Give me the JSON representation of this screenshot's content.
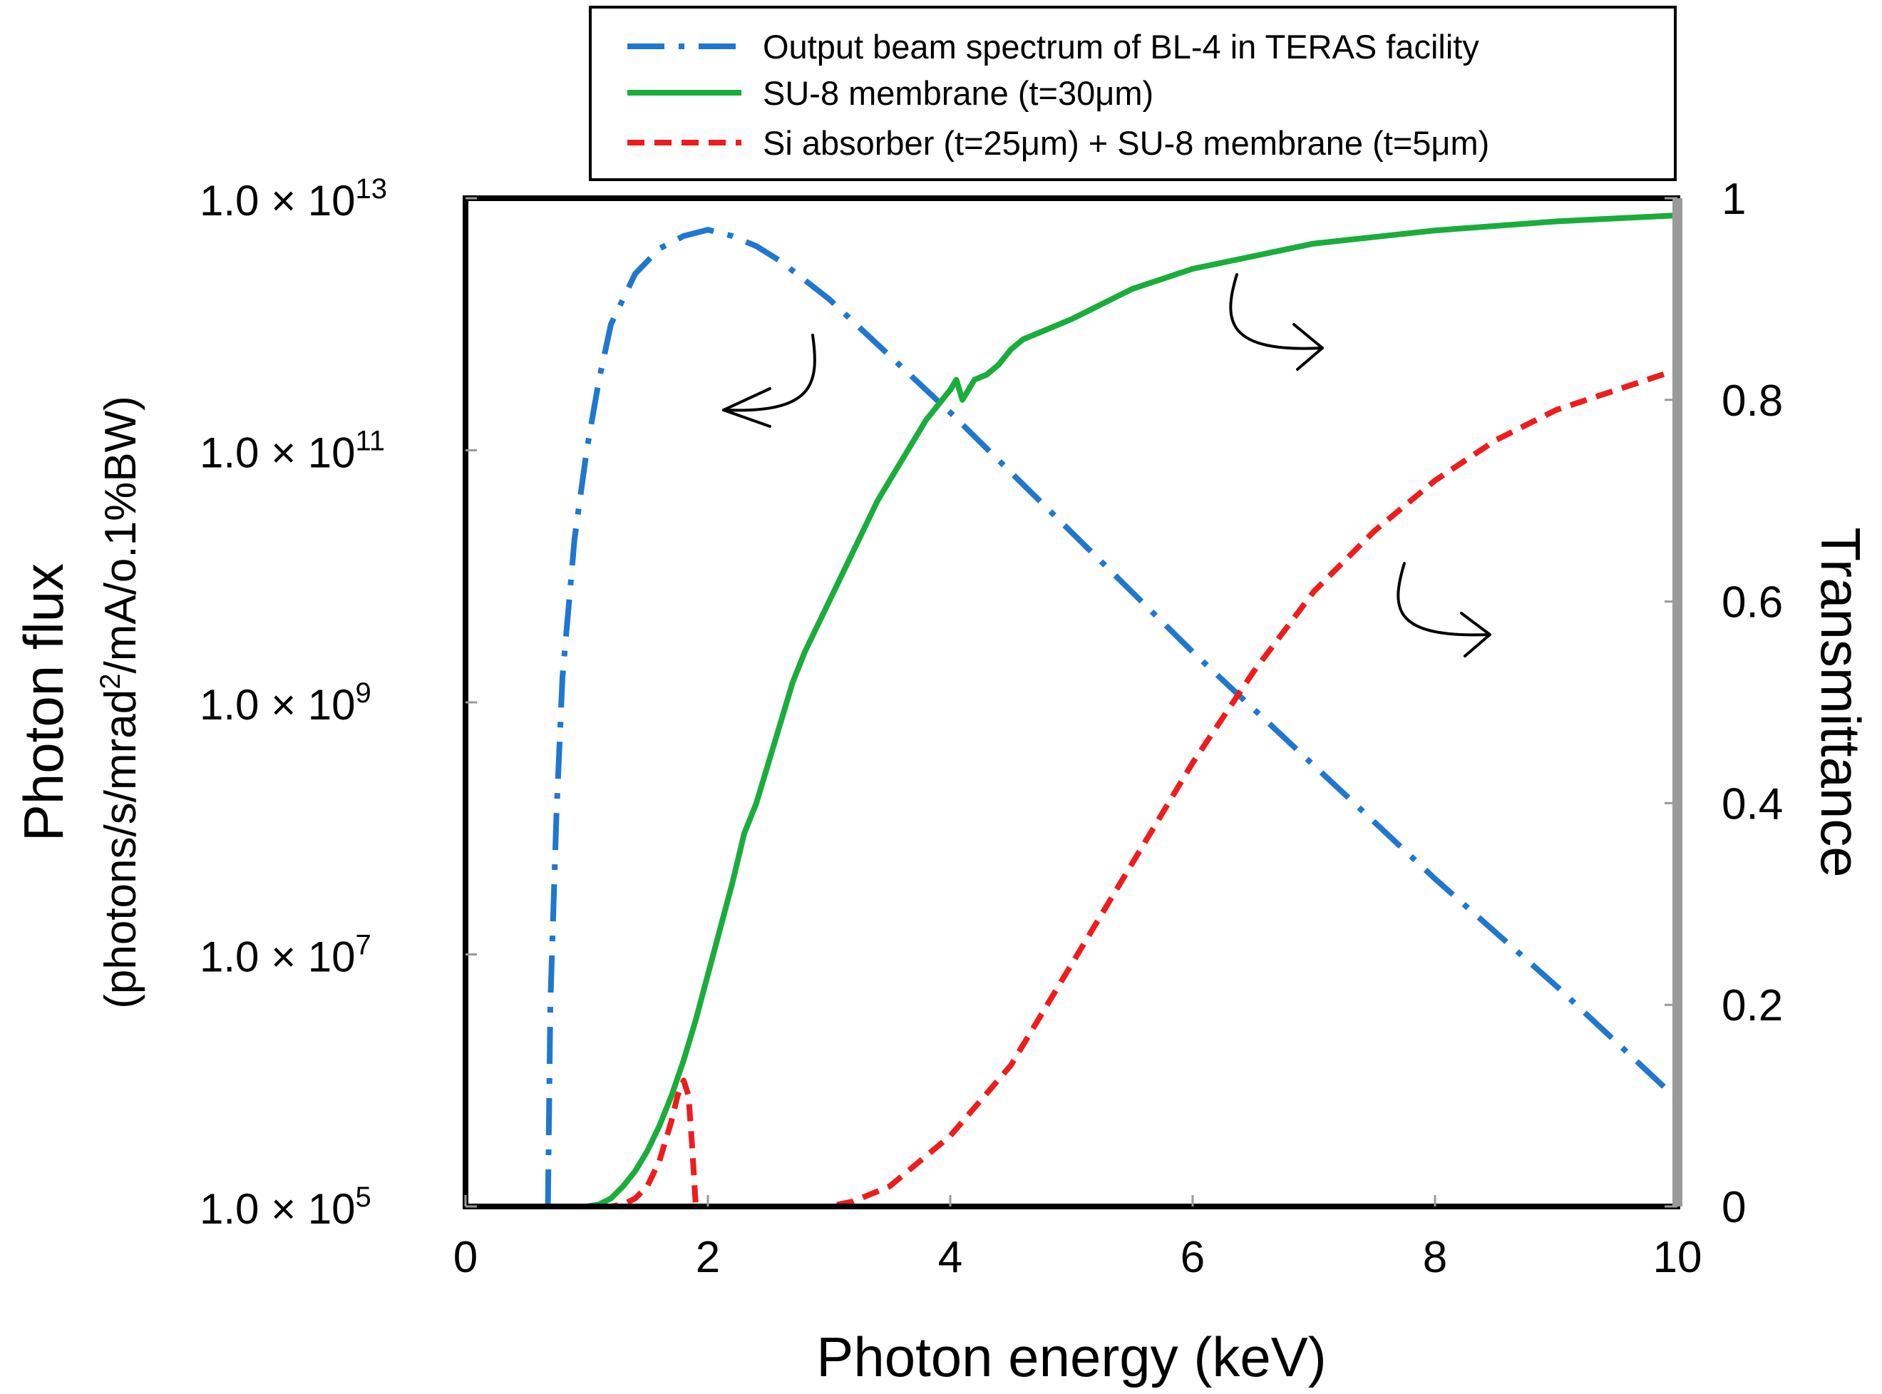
{
  "chart_data": {
    "type": "line",
    "xlabel": "Photon energy (keV)",
    "ylabel": "Photon flux",
    "ylabel_units_prefix": "(photons/s/mrad",
    "ylabel_units_sup": "2",
    "ylabel_units_suffix": "/mA/o.1%BW)",
    "y2label": "Transmittance",
    "xlim": [
      0,
      10
    ],
    "ylim_log": [
      100000,
      10000000000000
    ],
    "y2lim": [
      0,
      1
    ],
    "grid": false,
    "legend_position": "top",
    "x_ticks": [
      {
        "value": 0,
        "label": "0"
      },
      {
        "value": 2,
        "label": "2"
      },
      {
        "value": 4,
        "label": "4"
      },
      {
        "value": 6,
        "label": "6"
      },
      {
        "value": 8,
        "label": "8"
      },
      {
        "value": 10,
        "label": "10"
      }
    ],
    "y_ticks": [
      {
        "exp": 5,
        "mantissa": "1.0 × 10",
        "power": "5"
      },
      {
        "exp": 7,
        "mantissa": "1.0 × 10",
        "power": "7"
      },
      {
        "exp": 9,
        "mantissa": "1.0 × 10",
        "power": "9"
      },
      {
        "exp": 11,
        "mantissa": "1.0 × 10",
        "power": "11"
      },
      {
        "exp": 13,
        "mantissa": "1.0 × 10",
        "power": "13"
      }
    ],
    "y2_ticks": [
      {
        "value": 0,
        "label": "0"
      },
      {
        "value": 0.2,
        "label": "0.2"
      },
      {
        "value": 0.4,
        "label": "0.4"
      },
      {
        "value": 0.6,
        "label": "0.6"
      },
      {
        "value": 0.8,
        "label": "0.8"
      },
      {
        "value": 1,
        "label": "1"
      }
    ],
    "series": [
      {
        "name": "Output beam spectrum of BL-4 in TERAS facility",
        "axis": "left-log",
        "color": "#1f77cf",
        "style": "dashdot",
        "x": [
          0.68,
          0.7,
          0.75,
          0.8,
          0.9,
          1.0,
          1.1,
          1.2,
          1.4,
          1.6,
          1.8,
          2.0,
          2.2,
          2.4,
          2.6,
          2.8,
          3.0,
          4.0,
          5.0,
          6.0,
          7.0,
          8.0,
          9.0,
          10.0
        ],
        "log10_y": [
          5.0,
          6.6,
          8.1,
          9.2,
          10.3,
          11.0,
          11.55,
          12.0,
          12.4,
          12.6,
          12.7,
          12.75,
          12.7,
          12.62,
          12.5,
          12.35,
          12.2,
          11.3,
          10.35,
          9.4,
          8.5,
          7.6,
          6.75,
          5.85
        ]
      },
      {
        "name": "SU-8 membrane (t=30μm)",
        "axis": "right-linear",
        "color": "#1aad3c",
        "style": "solid",
        "x": [
          0,
          1.0,
          1.1,
          1.2,
          1.3,
          1.4,
          1.5,
          1.6,
          1.7,
          1.8,
          1.9,
          2.0,
          2.1,
          2.2,
          2.3,
          2.4,
          2.5,
          2.6,
          2.7,
          2.8,
          3.0,
          3.2,
          3.4,
          3.6,
          3.8,
          4.0,
          4.05,
          4.1,
          4.15,
          4.2,
          4.3,
          4.4,
          4.5,
          4.6,
          5.0,
          5.5,
          6.0,
          7.0,
          8.0,
          9.0,
          10.0
        ],
        "values": [
          0,
          0,
          0.002,
          0.008,
          0.02,
          0.035,
          0.055,
          0.08,
          0.11,
          0.145,
          0.185,
          0.23,
          0.275,
          0.32,
          0.37,
          0.4,
          0.44,
          0.48,
          0.52,
          0.55,
          0.6,
          0.65,
          0.7,
          0.74,
          0.78,
          0.81,
          0.82,
          0.8,
          0.81,
          0.82,
          0.825,
          0.835,
          0.85,
          0.86,
          0.88,
          0.91,
          0.93,
          0.955,
          0.968,
          0.977,
          0.983
        ]
      },
      {
        "name": "Si absorber (t=25μm) + SU-8 membrane (t=5μm)",
        "axis": "right-linear",
        "color": "#ee1c1c",
        "style": "dashed",
        "x": [
          0,
          1.2,
          1.3,
          1.4,
          1.5,
          1.6,
          1.7,
          1.75,
          1.8,
          1.84,
          1.87,
          1.9,
          2.5,
          3.0,
          3.2,
          3.5,
          4.0,
          4.5,
          5.0,
          5.5,
          6.0,
          6.5,
          7.0,
          7.5,
          8.0,
          8.5,
          9.0,
          9.5,
          10.0
        ],
        "values": [
          0,
          0,
          0.002,
          0.008,
          0.02,
          0.045,
          0.085,
          0.11,
          0.125,
          0.11,
          0.06,
          0,
          0,
          0,
          0.005,
          0.02,
          0.07,
          0.14,
          0.24,
          0.34,
          0.44,
          0.53,
          0.61,
          0.67,
          0.72,
          0.76,
          0.79,
          0.81,
          0.83
        ]
      }
    ]
  }
}
